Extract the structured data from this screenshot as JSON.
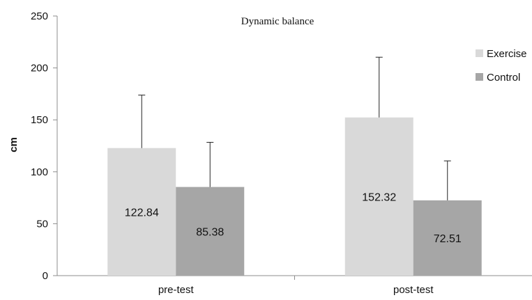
{
  "chart_data": {
    "type": "bar",
    "title": "Dynamic balance",
    "xlabel": "",
    "ylabel": "cm",
    "ylim": [
      0,
      250
    ],
    "yticks": [
      0,
      50,
      100,
      150,
      200,
      250
    ],
    "categories": [
      "pre-test",
      "post-test"
    ],
    "series": [
      {
        "name": "Exercise",
        "values": [
          122.84,
          152.32
        ],
        "errors": [
          51,
          58
        ],
        "color": "#d9d9d9"
      },
      {
        "name": "Control",
        "values": [
          85.38,
          72.51
        ],
        "errors": [
          43,
          38
        ],
        "color": "#a6a6a6"
      }
    ],
    "data_labels": [
      "122.84",
      "85.38",
      "152.32",
      "72.51"
    ],
    "grid": false,
    "legend": "right"
  }
}
